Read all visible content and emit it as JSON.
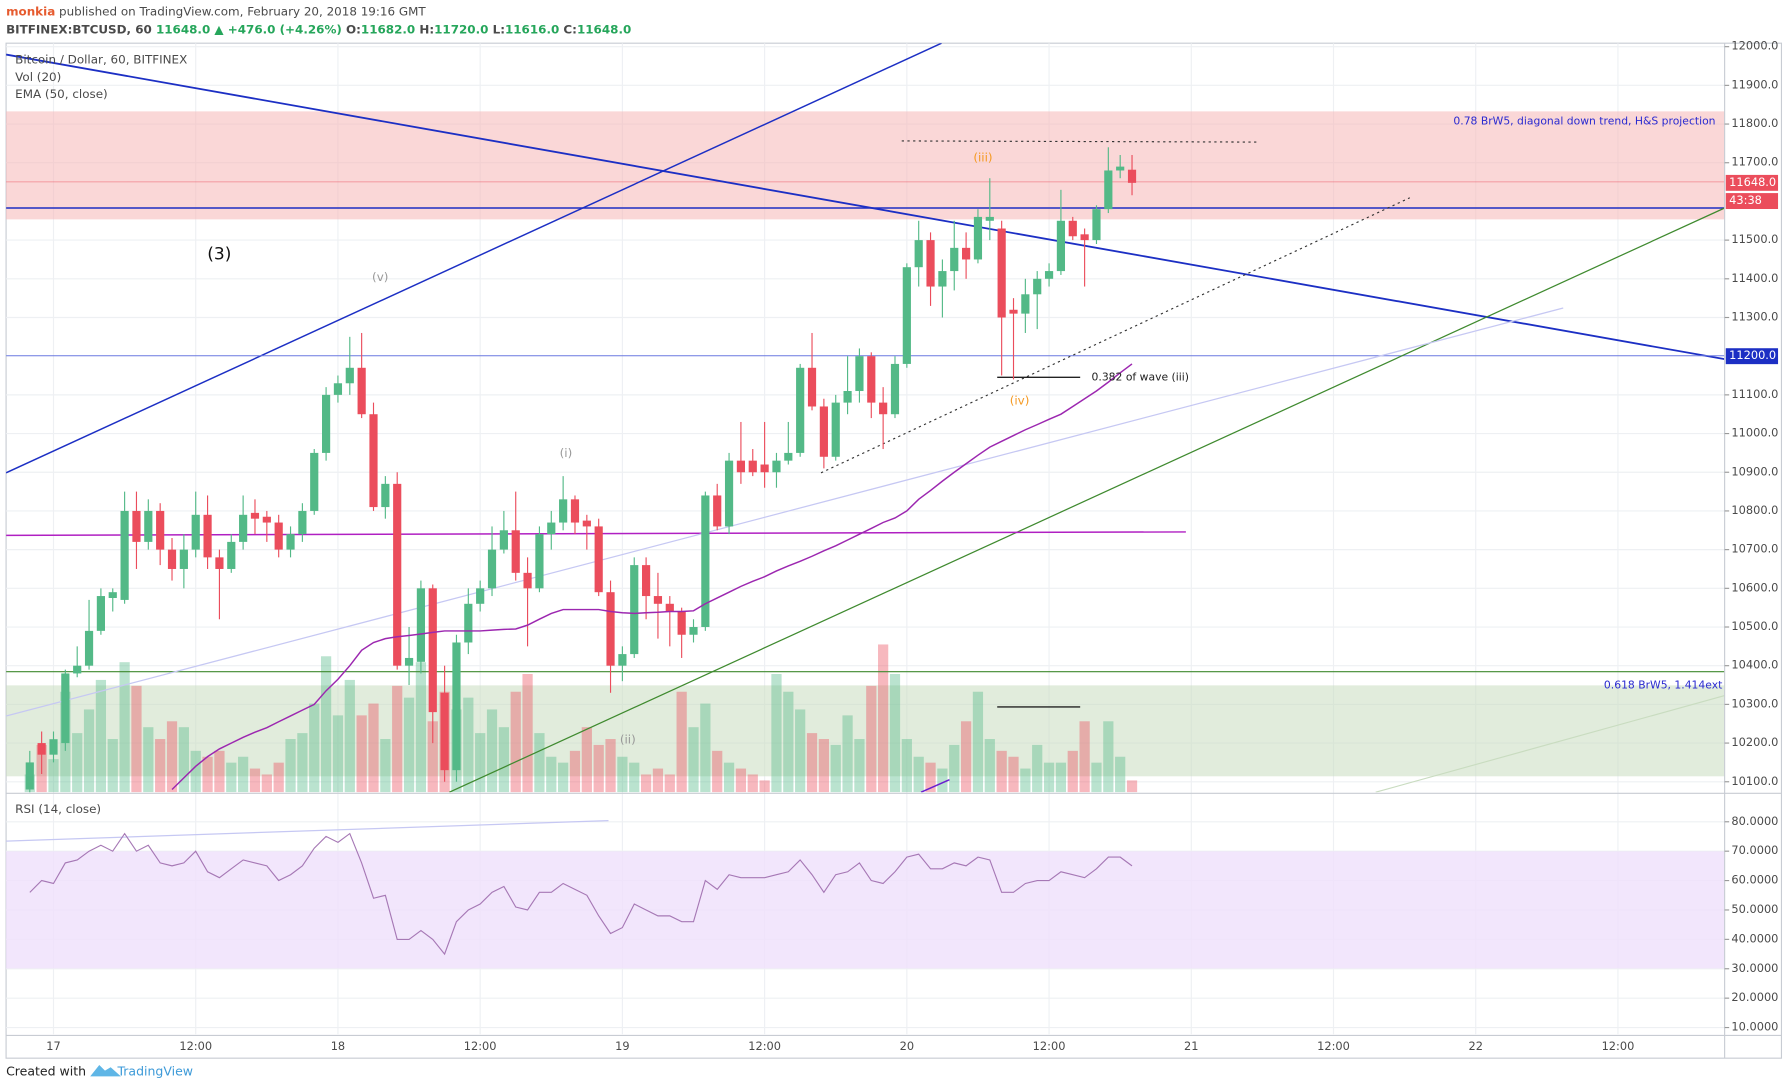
{
  "header": {
    "author": "monkia",
    "published": "published on TradingView.com, February 20, 2018 19:16 GMT",
    "symbol": "BITFINEX:BTCUSD, 60",
    "last": "11648.0",
    "change": "▲ +476.0 (+4.26%)",
    "ohlc": [
      {
        "label": "O:",
        "value": "11682.0"
      },
      {
        "label": "H:",
        "value": "11720.0"
      },
      {
        "label": "L:",
        "value": "11616.0"
      },
      {
        "label": "C:",
        "value": "11648.0"
      }
    ]
  },
  "chart_data": [
    {
      "type": "candlestick",
      "title": "Bitcoin / Dollar, 60, BITFINEX",
      "volume_label": "Vol (20)",
      "ema_label": "EMA (50, close)",
      "up_color": "#53b987",
      "down_color": "#eb4d5c",
      "ema_color": "#9c27b0",
      "grid": true,
      "x": [
        -2,
        -1,
        0,
        1,
        2,
        3,
        4,
        5,
        6,
        7,
        8,
        9,
        10,
        11,
        12,
        13,
        14,
        15,
        16,
        17,
        18,
        19,
        20,
        21,
        22,
        23,
        24,
        25,
        26,
        27,
        28,
        29,
        30,
        31,
        32,
        33,
        34,
        35,
        36,
        37,
        38,
        39,
        40,
        41,
        42,
        43,
        44,
        45,
        46,
        47,
        48,
        49,
        50,
        51,
        52,
        53,
        54,
        55,
        56,
        57,
        58,
        59,
        60,
        61,
        62,
        63,
        64,
        65,
        66,
        67,
        68,
        69,
        70,
        71,
        72,
        73,
        74,
        75,
        76,
        77,
        78,
        79,
        80,
        81,
        82,
        83,
        84,
        85,
        86,
        87,
        88,
        89,
        90,
        91
      ],
      "open": [
        10080,
        10200,
        10170,
        10200,
        10380,
        10400,
        10490,
        10575,
        10570,
        10800,
        10720,
        10800,
        10700,
        10650,
        10700,
        10790,
        10680,
        10650,
        10720,
        10795,
        10785,
        10770,
        10700,
        10740,
        10800,
        10950,
        11100,
        11130,
        11170,
        11050,
        10810,
        10870,
        10400,
        10410,
        10600,
        10330,
        10130,
        10460,
        10560,
        10600,
        10700,
        10750,
        10640,
        10600,
        10740,
        10770,
        10830,
        10775,
        10760,
        10590,
        10400,
        10430,
        10660,
        10580,
        10560,
        10540,
        10480,
        10500,
        10840,
        10760,
        10930,
        10930,
        10920,
        10900,
        10930,
        10950,
        11170,
        11070,
        10940,
        11080,
        11110,
        11200,
        11080,
        11050,
        11180,
        11430,
        11500,
        11380,
        11420,
        11480,
        11450,
        11550,
        11530,
        11320,
        11310,
        11360,
        11400,
        11420,
        11550,
        11515,
        11500,
        11580,
        11680,
        11682
      ],
      "high": [
        10180,
        10230,
        10230,
        10390,
        10450,
        10570,
        10600,
        10600,
        10850,
        10850,
        10830,
        10820,
        10730,
        10740,
        10850,
        10840,
        10700,
        10740,
        10840,
        10830,
        10800,
        10790,
        10760,
        10820,
        10960,
        11120,
        11150,
        11250,
        11260,
        11080,
        10890,
        10900,
        10500,
        10620,
        10610,
        10400,
        10480,
        10600,
        10620,
        10760,
        10800,
        10850,
        10680,
        10760,
        10800,
        10890,
        10840,
        10790,
        10780,
        10620,
        10450,
        10680,
        10680,
        10640,
        10580,
        10550,
        10520,
        10850,
        10870,
        10950,
        11030,
        10960,
        11030,
        10950,
        11030,
        11180,
        11260,
        11090,
        11100,
        11200,
        11220,
        11210,
        11120,
        11200,
        11440,
        11550,
        11520,
        11450,
        11550,
        11520,
        11580,
        11660,
        11550,
        11350,
        11400,
        11420,
        11440,
        11630,
        11560,
        11530,
        11590,
        11740,
        11720,
        11720
      ],
      "low": [
        10050,
        10120,
        10150,
        10180,
        10370,
        10390,
        10480,
        10540,
        10560,
        10650,
        10700,
        10660,
        10620,
        10600,
        10680,
        10650,
        10520,
        10640,
        10700,
        10740,
        10720,
        10680,
        10680,
        10720,
        10790,
        10930,
        11080,
        11100,
        11040,
        10800,
        10780,
        10390,
        10350,
        10380,
        10200,
        10100,
        10100,
        10430,
        10540,
        10580,
        10690,
        10620,
        10450,
        10590,
        10700,
        10750,
        10740,
        10700,
        10580,
        10330,
        10360,
        10420,
        10520,
        10470,
        10450,
        10420,
        10460,
        10490,
        10750,
        10740,
        10870,
        10890,
        10860,
        10860,
        10920,
        10940,
        11060,
        10910,
        10930,
        11050,
        11080,
        11040,
        10960,
        11040,
        11170,
        11380,
        11330,
        11300,
        11370,
        11400,
        11440,
        11500,
        11150,
        11140,
        11260,
        11270,
        11380,
        11410,
        11500,
        11380,
        11490,
        11570,
        11660,
        11616
      ],
      "close": [
        10150,
        10170,
        10210,
        10380,
        10400,
        10490,
        10580,
        10590,
        10800,
        10720,
        10800,
        10700,
        10650,
        10700,
        10790,
        10680,
        10650,
        10720,
        10790,
        10780,
        10770,
        10700,
        10740,
        10800,
        10950,
        11100,
        11130,
        11170,
        11050,
        10810,
        10870,
        10400,
        10420,
        10600,
        10280,
        10130,
        10460,
        10560,
        10600,
        10700,
        10750,
        10640,
        10600,
        10740,
        10770,
        10830,
        10770,
        10760,
        10590,
        10400,
        10430,
        10660,
        10580,
        10560,
        10540,
        10480,
        10500,
        10840,
        10760,
        10930,
        10900,
        10900,
        10900,
        10930,
        10950,
        11170,
        11070,
        10940,
        11080,
        11110,
        11200,
        11080,
        11050,
        11180,
        11430,
        11500,
        11380,
        11420,
        11480,
        11450,
        11560,
        11560,
        11300,
        11310,
        11360,
        11400,
        11420,
        11550,
        11510,
        11500,
        11580,
        11680,
        11690,
        11648
      ],
      "volume": [
        15,
        40,
        28,
        85,
        50,
        70,
        95,
        45,
        110,
        90,
        55,
        45,
        60,
        55,
        35,
        30,
        35,
        25,
        30,
        20,
        15,
        25,
        45,
        50,
        75,
        115,
        65,
        95,
        65,
        75,
        45,
        90,
        80,
        110,
        60,
        85,
        70,
        80,
        50,
        70,
        55,
        85,
        100,
        50,
        30,
        25,
        35,
        55,
        40,
        45,
        30,
        25,
        15,
        20,
        15,
        85,
        55,
        75,
        35,
        25,
        20,
        15,
        10,
        100,
        85,
        70,
        50,
        45,
        40,
        65,
        45,
        90,
        125,
        100,
        45,
        30,
        25,
        20,
        40,
        60,
        85,
        45,
        35,
        30,
        20,
        40,
        25,
        25,
        35,
        60,
        25,
        60,
        30,
        10
      ],
      "ema": [
        null,
        null,
        null,
        null,
        null,
        null,
        null,
        null,
        null,
        null,
        null,
        null,
        10080,
        10110,
        10140,
        10165,
        10185,
        10200,
        10215,
        10228,
        10240,
        10255,
        10270,
        10285,
        10300,
        10335,
        10365,
        10400,
        10440,
        10460,
        10470,
        10475,
        10478,
        10482,
        10486,
        10490,
        10490,
        10490,
        10490,
        10492,
        10494,
        10495,
        10505,
        10520,
        10535,
        10545,
        10545,
        10545,
        10545,
        10540,
        10537,
        10535,
        10537,
        10538,
        10540,
        10540,
        10542,
        10560,
        10575,
        10590,
        10605,
        10618,
        10630,
        10645,
        10658,
        10670,
        10683,
        10697,
        10710,
        10725,
        10740,
        10755,
        10770,
        10782,
        10800,
        10830,
        10853,
        10877,
        10900,
        10922,
        10944,
        10965,
        10980,
        10995,
        11010,
        11023,
        11037,
        11050,
        11070,
        11090,
        11110,
        11133,
        11157,
        11180
      ],
      "xlim": [
        -4,
        141
      ],
      "ylim": [
        10073,
        12009
      ],
      "xticks": [
        {
          "value": 0,
          "label": "17"
        },
        {
          "value": 12,
          "label": "12:00"
        },
        {
          "value": 24,
          "label": "18"
        },
        {
          "value": 36,
          "label": "12:00"
        },
        {
          "value": 48,
          "label": "19"
        },
        {
          "value": 60,
          "label": "12:00"
        },
        {
          "value": 72,
          "label": "20"
        },
        {
          "value": 84,
          "label": "12:00"
        },
        {
          "value": 96,
          "label": "21"
        },
        {
          "value": 108,
          "label": "12:00"
        },
        {
          "value": 120,
          "label": "22"
        },
        {
          "value": 132,
          "label": "12:00"
        }
      ],
      "yticks": [
        {
          "value": 12000,
          "label": "12000.0"
        },
        {
          "value": 11900,
          "label": "11900.0"
        },
        {
          "value": 11800,
          "label": "11800.0"
        },
        {
          "value": 11700,
          "label": "11700.0"
        },
        {
          "value": 11500,
          "label": "11500.0"
        },
        {
          "value": 11400,
          "label": "11400.0"
        },
        {
          "value": 11300,
          "label": "11300.0"
        },
        {
          "value": 11100,
          "label": "11100.0"
        },
        {
          "value": 11000,
          "label": "11000.0"
        },
        {
          "value": 10900,
          "label": "10900.0"
        },
        {
          "value": 10800,
          "label": "10800.0"
        },
        {
          "value": 10700,
          "label": "10700.0"
        },
        {
          "value": 10600,
          "label": "10600.0"
        },
        {
          "value": 10500,
          "label": "10500.0"
        },
        {
          "value": 10400,
          "label": "10400.0"
        },
        {
          "value": 10300,
          "label": "10300.0"
        },
        {
          "value": 10200,
          "label": "10200.0"
        },
        {
          "value": 10100,
          "label": "10100.0"
        }
      ],
      "price_labels": {
        "last": {
          "value": 11648,
          "label": "11648.0"
        },
        "countdown": "43:38",
        "level": {
          "value": 11200,
          "label": "11200.0"
        }
      },
      "annotations": [
        "(3)",
        "(v)",
        "(i)",
        "(iii)",
        "(iv)",
        "(ii)",
        "0.382 of wave (iii)",
        "0.78 BrW5, diagonal down trend, H&S projection",
        "0.618 BrW5, 1.414ext"
      ]
    },
    {
      "type": "line",
      "title": "RSI (14, close)",
      "color": "#a678b5",
      "values": [
        56,
        60,
        59,
        66,
        67,
        70,
        72,
        70,
        76,
        70,
        72,
        66,
        65,
        66,
        70,
        63,
        61,
        64,
        67,
        66,
        65,
        60,
        62,
        65,
        71,
        75,
        73,
        76,
        66,
        54,
        55,
        40,
        40,
        43,
        40,
        35,
        46,
        50,
        52,
        56,
        58,
        51,
        50,
        56,
        56,
        59,
        57,
        55,
        48,
        42,
        44,
        52,
        50,
        48,
        48,
        46,
        46,
        60,
        57,
        62,
        61,
        61,
        61,
        62,
        63,
        67,
        62,
        56,
        62,
        63,
        66,
        60,
        59,
        63,
        68,
        69,
        64,
        64,
        66,
        65,
        68,
        67,
        56,
        56,
        59,
        60,
        60,
        63,
        62,
        61,
        64,
        68,
        68,
        65
      ],
      "ylim": [
        7.7,
        88.9
      ],
      "yticks": [
        {
          "value": 80,
          "label": "80.0000"
        },
        {
          "value": 70,
          "label": "70.0000"
        },
        {
          "value": 60,
          "label": "60.0000"
        },
        {
          "value": 50,
          "label": "50.0000"
        },
        {
          "value": 40,
          "label": "40.0000"
        },
        {
          "value": 30,
          "label": "30.0000"
        },
        {
          "value": 20,
          "label": "20.0000"
        },
        {
          "value": 10,
          "label": "10.0000"
        }
      ]
    }
  ],
  "footer": {
    "created": "Created with",
    "brand": "TradingView"
  }
}
